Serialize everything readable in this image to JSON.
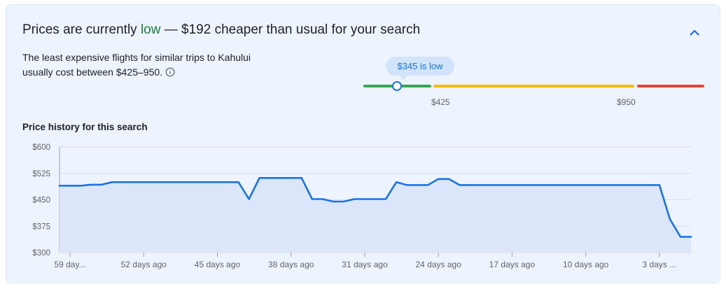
{
  "headline": {
    "prefix": "Prices are currently ",
    "status": "low",
    "suffix": " — $192 cheaper than usual for your search"
  },
  "collapse_icon": "chevron-up-icon",
  "description": "The least expensive flights for similar trips to Kahului usually cost between $425–950.",
  "info_icon": "info-icon",
  "gauge": {
    "bubble_label": "$345 is low",
    "tick_low": "$425",
    "tick_high": "$950",
    "current_value": 345,
    "range_low": 425,
    "range_high": 950,
    "colors": {
      "low": "#34a853",
      "typical": "#fbbc04",
      "high": "#ea4335",
      "accent": "#1a73e8"
    }
  },
  "history_title": "Price history for this search",
  "chart_data": {
    "type": "area",
    "title": "Price history for this search",
    "xlabel": "",
    "ylabel": "",
    "y_ticks": [
      "$300",
      "$375",
      "$450",
      "$525",
      "$600"
    ],
    "ylim": [
      300,
      600
    ],
    "x_ticks": [
      "59 day...",
      "52 days ago",
      "45 days ago",
      "38 days ago",
      "31 days ago",
      "24 days ago",
      "17 days ago",
      "10 days ago",
      "3 days ..."
    ],
    "x_tick_days": [
      59,
      52,
      45,
      38,
      31,
      24,
      17,
      10,
      3
    ],
    "xlim_days_ago": [
      60,
      0
    ],
    "grid": true,
    "series": [
      {
        "days_ago": [
          60,
          58,
          57,
          56,
          55,
          54,
          50,
          45,
          43,
          42,
          41,
          39,
          37,
          36,
          35,
          34,
          33,
          32,
          31,
          30,
          29,
          28,
          27,
          26,
          25,
          24,
          23,
          22,
          21,
          20,
          18,
          15,
          12,
          8,
          5,
          4,
          3,
          2,
          1,
          0
        ],
        "values": [
          490,
          490,
          493,
          493,
          500,
          500,
          500,
          500,
          500,
          452,
          512,
          512,
          512,
          452,
          452,
          445,
          445,
          452,
          452,
          452,
          452,
          500,
          492,
          492,
          492,
          509,
          509,
          492,
          492,
          492,
          492,
          492,
          492,
          492,
          492,
          492,
          492,
          395,
          345,
          345
        ]
      }
    ],
    "colors": {
      "line": "#1a73e8",
      "fill": "#dbe6fb",
      "grid": "#dadce0"
    }
  }
}
